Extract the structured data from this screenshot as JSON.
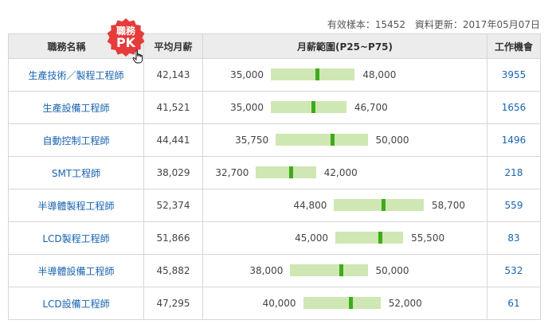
{
  "meta": {
    "sample_label": "有效樣本：15452",
    "updated_label": "資料更新：2017年05月07日"
  },
  "header": {
    "job_name": "職務名稱",
    "avg_salary": "平均月薪",
    "range": "月薪範圍(P25~P75)",
    "openings": "工作機會"
  },
  "badge": {
    "top": "職務",
    "bottom": "PK",
    "color": "#e63b3b",
    "icon": "starburst-badge"
  },
  "colors": {
    "link": "#1a63b0",
    "range_bar": "#cfe7b3",
    "median_marker": "#3faa1c"
  },
  "rows": [
    {
      "job": "生產技術／製程工程師",
      "avg": "42,143",
      "low": "35,000",
      "high": "48,000",
      "low_v": 35000,
      "high_v": 48000,
      "avg_v": 42143,
      "openings": "3955"
    },
    {
      "job": "生產設備工程師",
      "avg": "41,521",
      "low": "35,000",
      "high": "46,700",
      "low_v": 35000,
      "high_v": 46700,
      "avg_v": 41521,
      "openings": "1656"
    },
    {
      "job": "自動控制工程師",
      "avg": "44,441",
      "low": "35,750",
      "high": "50,000",
      "low_v": 35750,
      "high_v": 50000,
      "avg_v": 44441,
      "openings": "1496"
    },
    {
      "job": "SMT工程師",
      "avg": "38,029",
      "low": "32,700",
      "high": "42,000",
      "low_v": 32700,
      "high_v": 42000,
      "avg_v": 38029,
      "openings": "218"
    },
    {
      "job": "半導體製程工程師",
      "avg": "52,374",
      "low": "44,800",
      "high": "58,700",
      "low_v": 44800,
      "high_v": 58700,
      "avg_v": 52374,
      "openings": "559"
    },
    {
      "job": "LCD製程工程師",
      "avg": "51,866",
      "low": "45,000",
      "high": "55,500",
      "low_v": 45000,
      "high_v": 55500,
      "avg_v": 51866,
      "openings": "83"
    },
    {
      "job": "半導體設備工程師",
      "avg": "45,882",
      "low": "38,000",
      "high": "50,000",
      "low_v": 38000,
      "high_v": 50000,
      "avg_v": 45882,
      "openings": "532"
    },
    {
      "job": "LCD設備工程師",
      "avg": "47,295",
      "low": "40,000",
      "high": "52,000",
      "low_v": 40000,
      "high_v": 52000,
      "avg_v": 47295,
      "openings": "61"
    }
  ]
}
